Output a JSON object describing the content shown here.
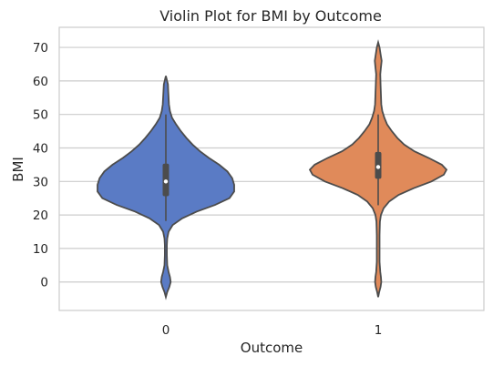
{
  "chart_data": {
    "type": "violin",
    "title": "Violin Plot for BMI by Outcome",
    "xlabel": "Outcome",
    "ylabel": "BMI",
    "categories": [
      "0",
      "1"
    ],
    "ylim": [
      -8.5,
      76
    ],
    "yticks": [
      0,
      10,
      20,
      30,
      40,
      50,
      60,
      70
    ],
    "grid": "horizontal",
    "series": [
      {
        "category": "0",
        "color": "#5a7bc5",
        "min": 0,
        "q1": 25.6,
        "median": 30.0,
        "q3": 35.3,
        "max": 57.3,
        "whisker_low": 18.2,
        "whisker_high": 50.0,
        "density_profile": [
          [
            -4.5,
            0.0
          ],
          [
            -3.0,
            0.02
          ],
          [
            -1.5,
            0.05
          ],
          [
            0.0,
            0.07
          ],
          [
            1.5,
            0.06
          ],
          [
            3.0,
            0.04
          ],
          [
            5.0,
            0.02
          ],
          [
            8.0,
            0.015
          ],
          [
            11.0,
            0.015
          ],
          [
            13.0,
            0.02
          ],
          [
            15.0,
            0.04
          ],
          [
            17.0,
            0.1
          ],
          [
            19.0,
            0.24
          ],
          [
            21.0,
            0.45
          ],
          [
            23.0,
            0.72
          ],
          [
            25.0,
            0.93
          ],
          [
            27.0,
            1.0
          ],
          [
            29.0,
            1.0
          ],
          [
            31.0,
            0.97
          ],
          [
            33.0,
            0.9
          ],
          [
            35.0,
            0.78
          ],
          [
            37.0,
            0.63
          ],
          [
            39.0,
            0.5
          ],
          [
            41.0,
            0.39
          ],
          [
            43.0,
            0.3
          ],
          [
            45.0,
            0.22
          ],
          [
            47.0,
            0.15
          ],
          [
            49.0,
            0.09
          ],
          [
            51.0,
            0.06
          ],
          [
            53.0,
            0.045
          ],
          [
            55.0,
            0.04
          ],
          [
            57.0,
            0.035
          ],
          [
            59.0,
            0.03
          ],
          [
            61.5,
            0.0
          ]
        ]
      },
      {
        "category": "1",
        "color": "#e08a5a",
        "min": 0,
        "q1": 30.8,
        "median": 34.3,
        "q3": 38.8,
        "max": 67.1,
        "whisker_low": 22.9,
        "whisker_high": 50.0,
        "density_profile": [
          [
            -4.5,
            0.0
          ],
          [
            -3.0,
            0.015
          ],
          [
            -1.5,
            0.035
          ],
          [
            0.0,
            0.045
          ],
          [
            1.5,
            0.04
          ],
          [
            3.0,
            0.03
          ],
          [
            6.0,
            0.02
          ],
          [
            10.0,
            0.02
          ],
          [
            14.0,
            0.02
          ],
          [
            18.0,
            0.025
          ],
          [
            20.0,
            0.04
          ],
          [
            22.0,
            0.08
          ],
          [
            24.0,
            0.16
          ],
          [
            26.0,
            0.3
          ],
          [
            28.0,
            0.52
          ],
          [
            30.0,
            0.78
          ],
          [
            32.0,
            0.96
          ],
          [
            33.5,
            1.0
          ],
          [
            35.0,
            0.93
          ],
          [
            37.0,
            0.74
          ],
          [
            39.0,
            0.53
          ],
          [
            41.0,
            0.38
          ],
          [
            43.0,
            0.28
          ],
          [
            45.0,
            0.2
          ],
          [
            47.0,
            0.13
          ],
          [
            49.0,
            0.09
          ],
          [
            51.0,
            0.06
          ],
          [
            53.0,
            0.045
          ],
          [
            56.0,
            0.04
          ],
          [
            59.0,
            0.035
          ],
          [
            62.0,
            0.03
          ],
          [
            64.0,
            0.04
          ],
          [
            66.0,
            0.05
          ],
          [
            68.0,
            0.035
          ],
          [
            70.0,
            0.02
          ],
          [
            71.5,
            0.0
          ]
        ]
      }
    ]
  }
}
